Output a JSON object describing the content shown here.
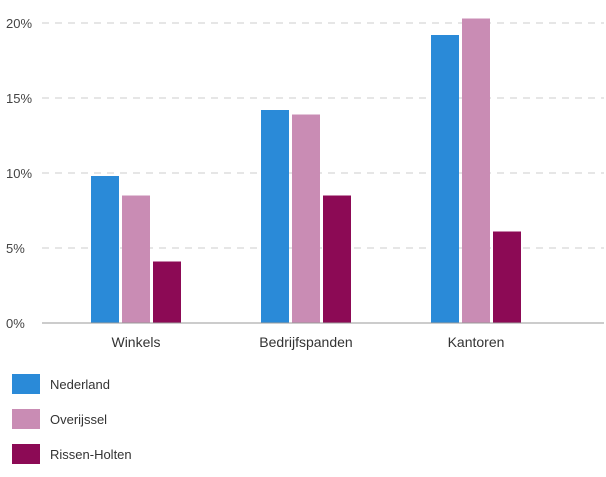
{
  "chart_data": {
    "type": "bar",
    "categories": [
      "Winkels",
      "Bedrijfspanden",
      "Kantoren"
    ],
    "series": [
      {
        "name": "Nederland",
        "color": "#2a8ad8",
        "values": [
          9.8,
          14.2,
          19.2
        ]
      },
      {
        "name": "Overijssel",
        "color": "#c98cb4",
        "values": [
          8.5,
          13.9,
          20.3
        ]
      },
      {
        "name": "Rissen-Holten",
        "color": "#8c0a55",
        "values": [
          4.1,
          8.5,
          6.1
        ]
      }
    ],
    "ylim": [
      0,
      20
    ],
    "yticks": [
      "0%",
      "5%",
      "10%",
      "15%",
      "20%"
    ],
    "grid": "dashed-horizontal",
    "legend": "bottom-left"
  }
}
